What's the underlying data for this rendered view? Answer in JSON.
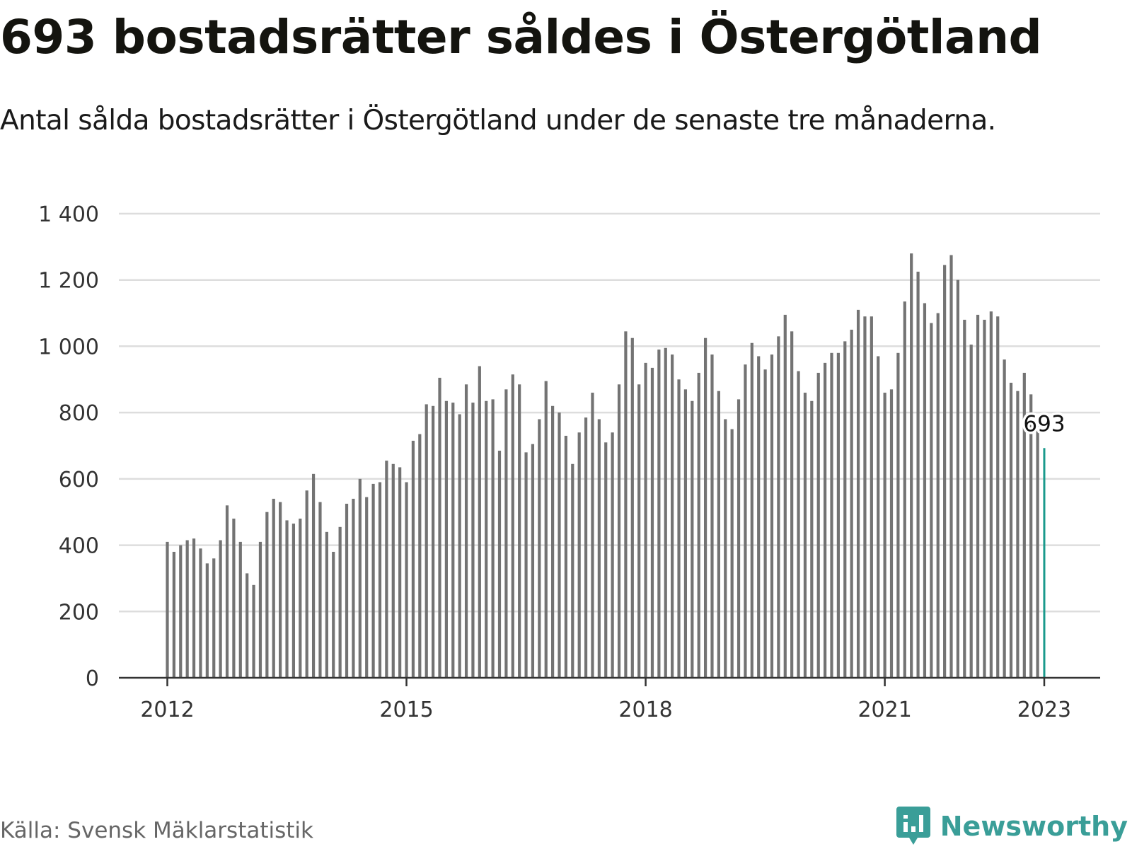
{
  "header": {
    "title": "693 bostadsrätter såldes i Östergötland",
    "subtitle": "Antal sålda bostadsrätter i Östergötland under de senaste tre månaderna."
  },
  "footer": {
    "source": "Källa: Svensk Mäklarstatistik",
    "brand": "Newsworthy"
  },
  "colors": {
    "bar": "#737373",
    "highlight": "#1a9a8c",
    "grid": "#dddddd",
    "axis": "#333333",
    "brand": "#3a9e98"
  },
  "chart_data": {
    "type": "bar",
    "title": "693 bostadsrätter såldes i Östergötland",
    "subtitle": "Antal sålda bostadsrätter i Östergötland under de senaste tre månaderna.",
    "xlabel": "",
    "ylabel": "",
    "ylim": [
      0,
      1400
    ],
    "yticks": [
      0,
      200,
      400,
      600,
      800,
      1000,
      1200,
      1400
    ],
    "ytick_labels": [
      "0",
      "200",
      "400",
      "600",
      "800",
      "1 000",
      "1 200",
      "1 400"
    ],
    "xtick_labels": [
      "2012",
      "2015",
      "2018",
      "2021",
      "2023"
    ],
    "xtick_dates": [
      "2012-01",
      "2015-01",
      "2018-01",
      "2021-01",
      "2023-01"
    ],
    "grid": true,
    "legend": "none",
    "highlight_label": "693",
    "categories": [
      "2012-01",
      "2012-02",
      "2012-03",
      "2012-04",
      "2012-05",
      "2012-06",
      "2012-07",
      "2012-08",
      "2012-09",
      "2012-10",
      "2012-11",
      "2012-12",
      "2013-01",
      "2013-02",
      "2013-03",
      "2013-04",
      "2013-05",
      "2013-06",
      "2013-07",
      "2013-08",
      "2013-09",
      "2013-10",
      "2013-11",
      "2013-12",
      "2014-01",
      "2014-02",
      "2014-03",
      "2014-04",
      "2014-05",
      "2014-06",
      "2014-07",
      "2014-08",
      "2014-09",
      "2014-10",
      "2014-11",
      "2014-12",
      "2015-01",
      "2015-02",
      "2015-03",
      "2015-04",
      "2015-05",
      "2015-06",
      "2015-07",
      "2015-08",
      "2015-09",
      "2015-10",
      "2015-11",
      "2015-12",
      "2016-01",
      "2016-02",
      "2016-03",
      "2016-04",
      "2016-05",
      "2016-06",
      "2016-07",
      "2016-08",
      "2016-09",
      "2016-10",
      "2016-11",
      "2016-12",
      "2017-01",
      "2017-02",
      "2017-03",
      "2017-04",
      "2017-05",
      "2017-06",
      "2017-07",
      "2017-08",
      "2017-09",
      "2017-10",
      "2017-11",
      "2017-12",
      "2018-01",
      "2018-02",
      "2018-03",
      "2018-04",
      "2018-05",
      "2018-06",
      "2018-07",
      "2018-08",
      "2018-09",
      "2018-10",
      "2018-11",
      "2018-12",
      "2019-01",
      "2019-02",
      "2019-03",
      "2019-04",
      "2019-05",
      "2019-06",
      "2019-07",
      "2019-08",
      "2019-09",
      "2019-10",
      "2019-11",
      "2019-12",
      "2020-01",
      "2020-02",
      "2020-03",
      "2020-04",
      "2020-05",
      "2020-06",
      "2020-07",
      "2020-08",
      "2020-09",
      "2020-10",
      "2020-11",
      "2020-12",
      "2021-01",
      "2021-02",
      "2021-03",
      "2021-04",
      "2021-05",
      "2021-06",
      "2021-07",
      "2021-08",
      "2021-09",
      "2021-10",
      "2021-11",
      "2021-12",
      "2022-01",
      "2022-02",
      "2022-03",
      "2022-04",
      "2022-05",
      "2022-06",
      "2022-07",
      "2022-08",
      "2022-09",
      "2022-10",
      "2022-11",
      "2022-12",
      "2023-01"
    ],
    "values": [
      410,
      380,
      400,
      415,
      420,
      390,
      345,
      360,
      415,
      520,
      480,
      410,
      315,
      280,
      410,
      500,
      540,
      530,
      475,
      465,
      480,
      565,
      615,
      530,
      440,
      380,
      455,
      525,
      540,
      600,
      545,
      585,
      590,
      655,
      645,
      635,
      590,
      715,
      735,
      825,
      820,
      905,
      835,
      830,
      795,
      885,
      830,
      940,
      835,
      840,
      685,
      870,
      915,
      885,
      680,
      705,
      780,
      895,
      820,
      800,
      730,
      645,
      740,
      785,
      860,
      780,
      710,
      740,
      885,
      1045,
      1025,
      885,
      950,
      935,
      990,
      995,
      975,
      900,
      870,
      835,
      920,
      1025,
      975,
      865,
      780,
      750,
      840,
      945,
      1010,
      970,
      930,
      975,
      1030,
      1095,
      1045,
      925,
      860,
      835,
      920,
      950,
      980,
      980,
      1015,
      1050,
      1110,
      1090,
      1090,
      970,
      860,
      870,
      980,
      1135,
      1280,
      1225,
      1130,
      1070,
      1100,
      1245,
      1275,
      1200,
      1080,
      1005,
      1095,
      1080,
      1105,
      1090,
      960,
      890,
      865,
      920,
      855,
      760,
      693
    ]
  }
}
